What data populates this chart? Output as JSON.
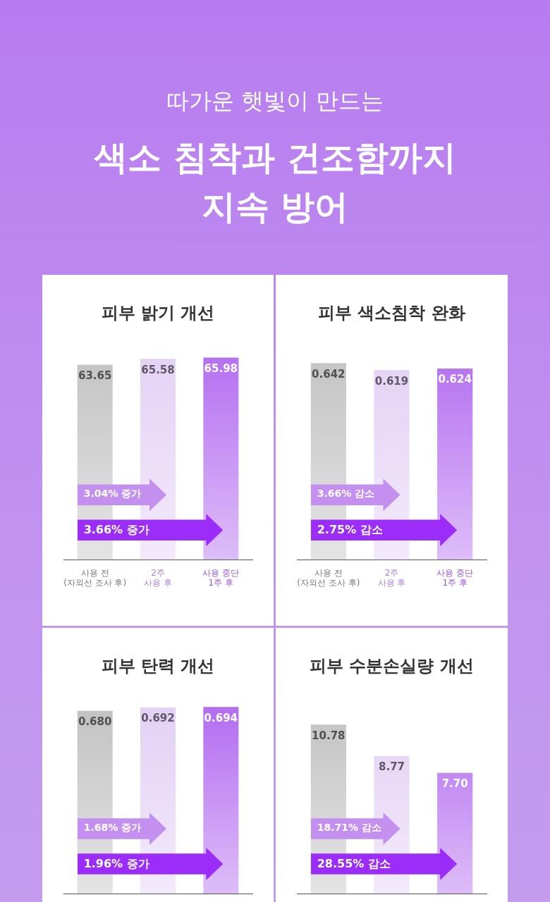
{
  "chart_data": [
    {
      "type": "other",
      "subtitle": "따가운 햇빛이 만드는",
      "title": "색소 침착과 건조함까지\n지속 방어"
    },
    {
      "type": "bar",
      "title": "피부 밝기 개선",
      "categories": [
        "사용 전\n(자외선 조사 후)",
        "2주\n사용 후",
        "사용 중단\n1주 후"
      ],
      "values": [
        63.65,
        65.58,
        65.98
      ],
      "colors": [
        "#c2c2c2",
        "#e3d1f5",
        "#b36cf0"
      ],
      "tick_labels": "x",
      "data_labels": true,
      "annotations": [
        "3.04% 증가",
        "3.66% 증가"
      ]
    },
    {
      "type": "bar",
      "title": "피부 색소침착 완화",
      "categories": [
        "사용 전\n(자외선 조사 후)",
        "2주\n사용 후",
        "사용 중단\n1주 후"
      ],
      "values": [
        0.642,
        0.619,
        0.624
      ],
      "colors": [
        "#c2c2c2",
        "#e3d1f5",
        "#b36cf0"
      ],
      "tick_labels": "x",
      "data_labels": true,
      "annotations": [
        "3.66% 감소",
        "2.75% 감소"
      ]
    },
    {
      "type": "bar",
      "title": "피부 탄력 개선",
      "categories": [
        null,
        null,
        null
      ],
      "values": [
        0.68,
        0.692,
        0.694
      ],
      "value_labels": [
        "0.680",
        "0.692",
        "0.694"
      ],
      "colors": [
        "#c2c2c2",
        "#e3d1f5",
        "#b36cf0"
      ],
      "tick_labels": false,
      "annotations": [
        "1.68% 증가",
        "1.96% 증가"
      ]
    },
    {
      "type": "bar",
      "title": "피부 수분손실량 개선",
      "categories": [
        null,
        null,
        null
      ],
      "values": [
        10.78,
        8.77,
        7.7
      ],
      "value_labels": [
        "10.78",
        "8.77",
        "7.70"
      ],
      "colors": [
        "#c2c2c2",
        "#e3d1f5",
        "#b36cf0"
      ],
      "tick_labels": false,
      "annotations": [
        "18.71% 감소",
        "28.55% 감소"
      ]
    }
  ]
}
